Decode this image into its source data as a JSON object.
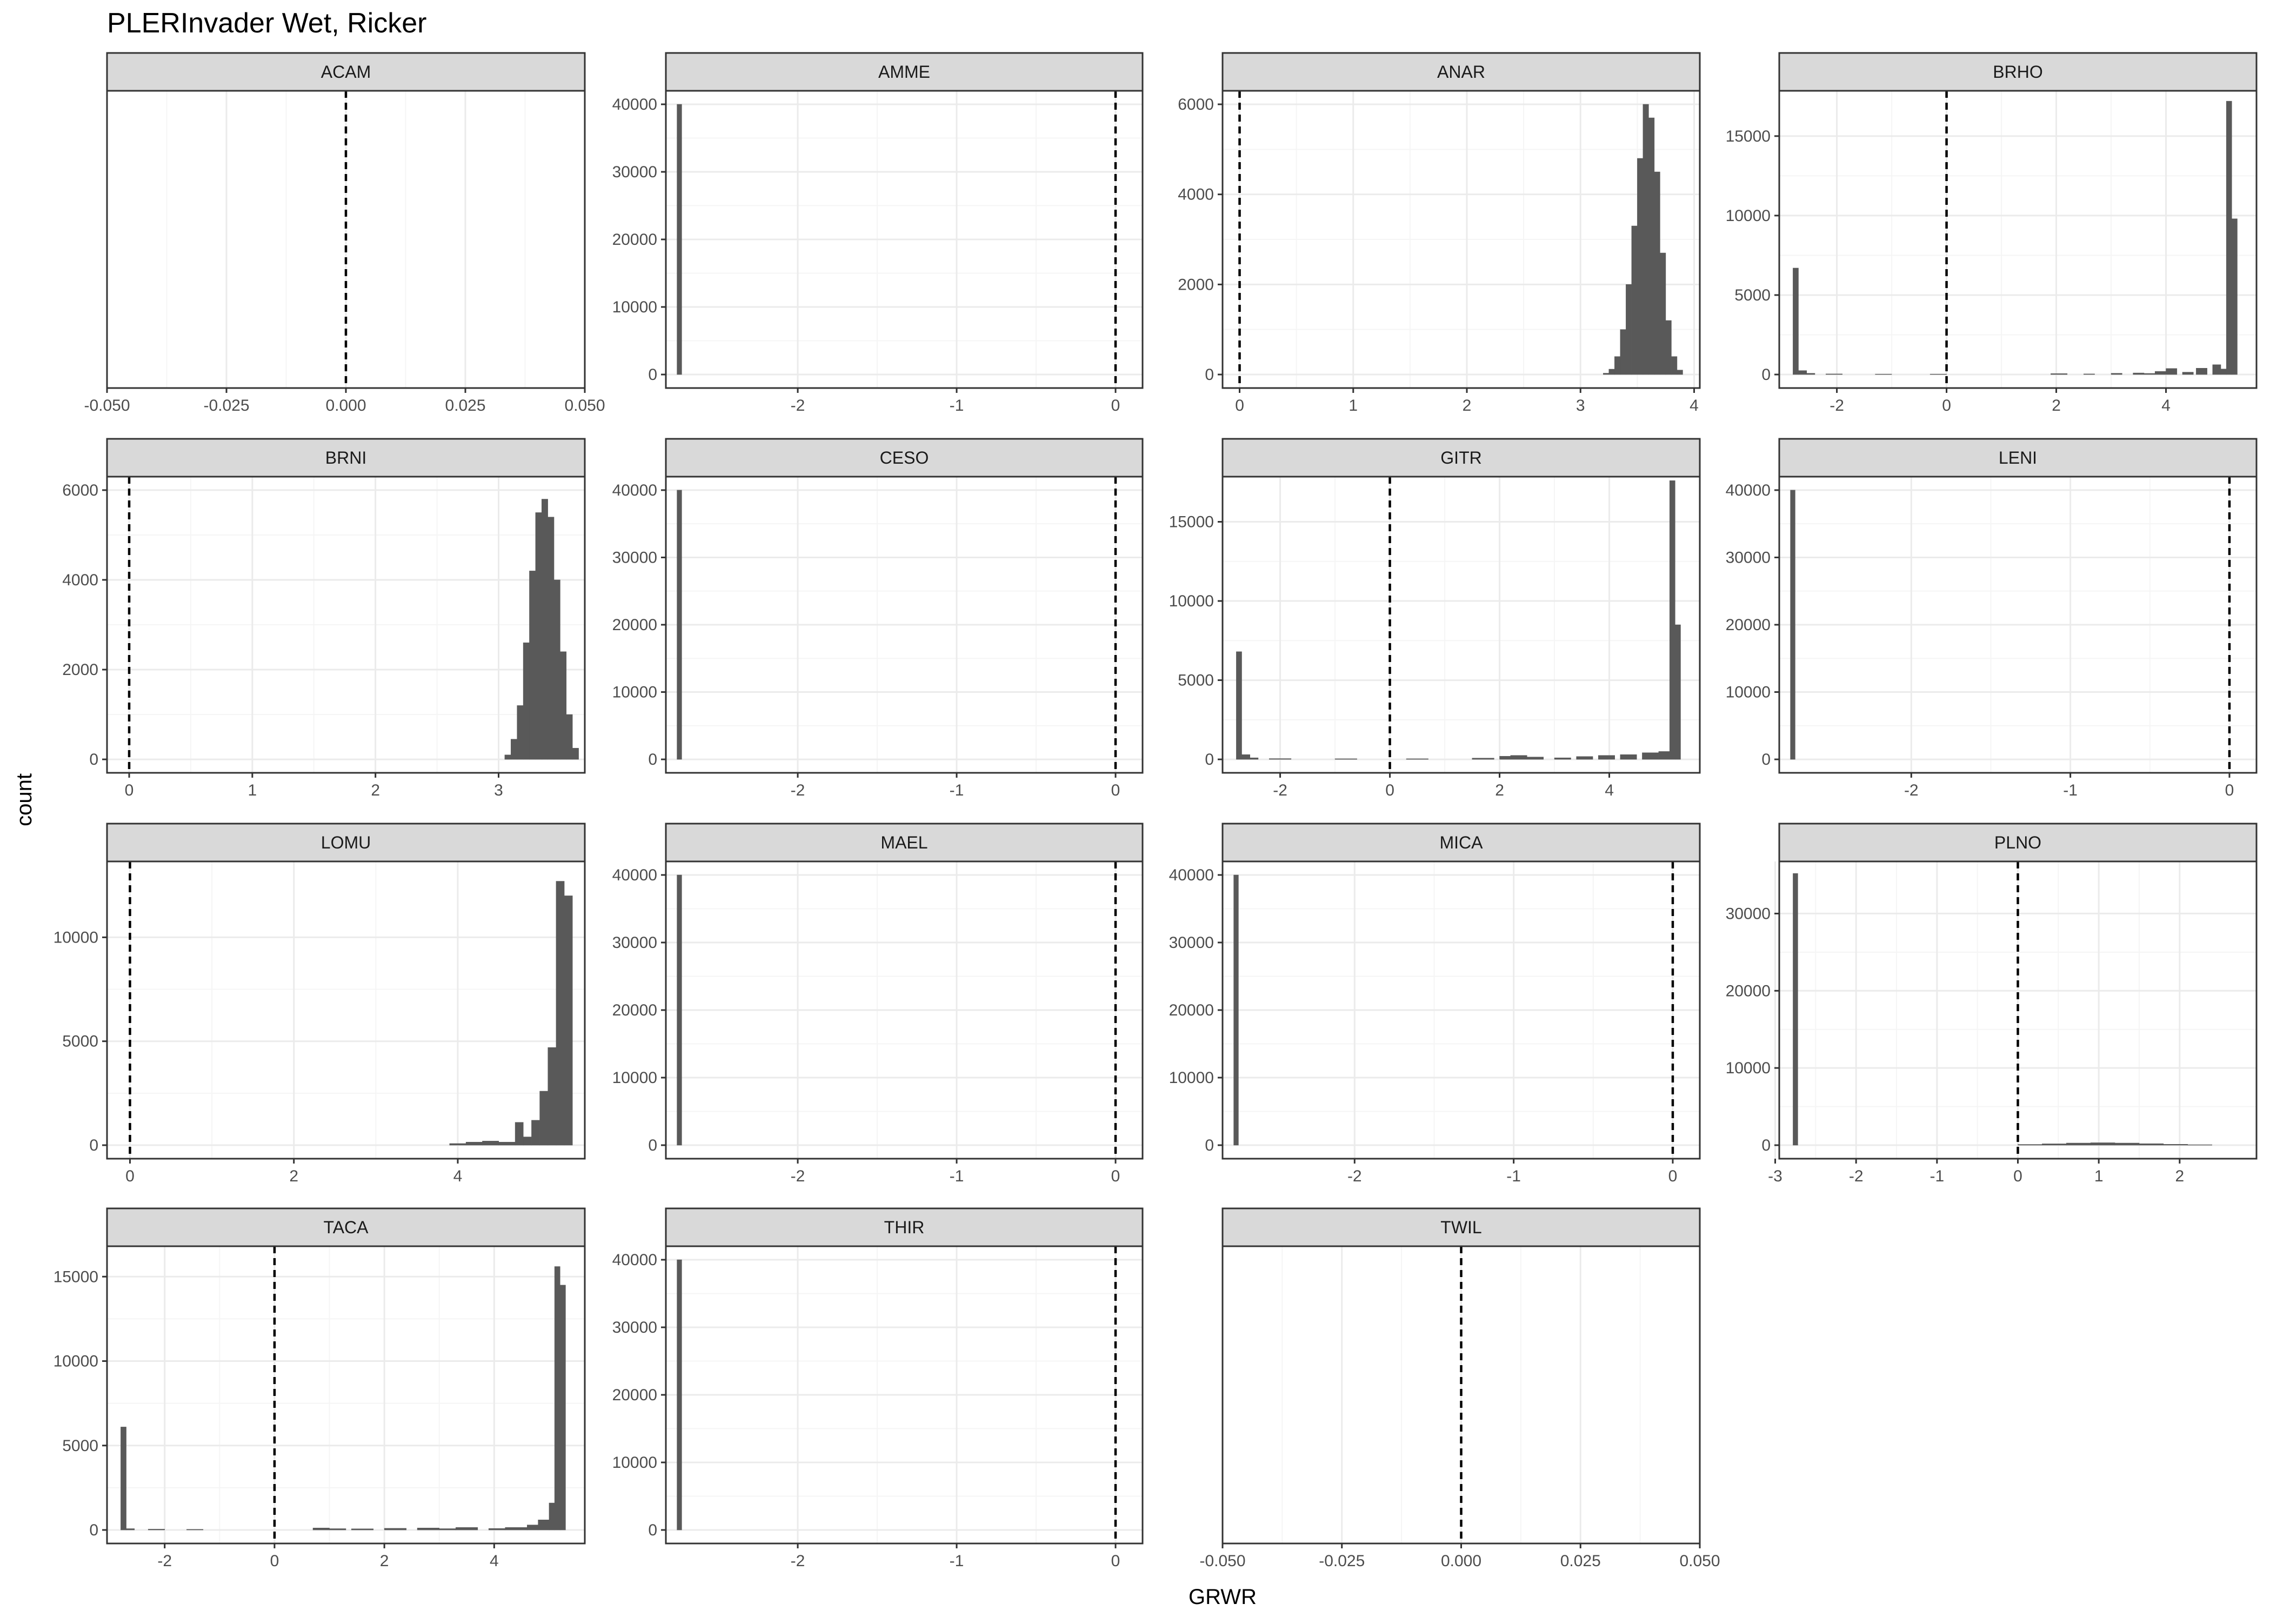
{
  "title": "PLERInvader Wet, Ricker",
  "xlabel": "GRWR",
  "ylabel": "count",
  "colors": {
    "bar": "#595959",
    "strip_fill": "#d9d9d9",
    "panel_border": "#333333",
    "grid_major": "#ebebeb",
    "grid_minor": "#f5f5f5",
    "vline": "#000000",
    "text": "#4d4d4d"
  },
  "chart_data": {
    "type": "bar",
    "subtype": "faceted-histogram",
    "vline_x": 0,
    "grid": true,
    "panels": [
      {
        "name": "ACAM",
        "empty": true,
        "xlim": [
          -0.05,
          0.05
        ],
        "xticks": [
          -0.05,
          -0.025,
          0,
          0.025,
          0.05
        ],
        "xtick_labels": [
          "-0.050",
          "-0.025",
          "0.000",
          "0.025",
          "0.050"
        ],
        "yticks": [],
        "ylim": [
          0,
          1
        ],
        "bars": []
      },
      {
        "name": "AMME",
        "xlim": [
          -2.83,
          0.17
        ],
        "xticks": [
          -2,
          -1,
          0
        ],
        "xtick_labels": [
          "-2",
          "-1",
          "0"
        ],
        "ylim": [
          -2000,
          42000
        ],
        "yticks": [
          0,
          10000,
          20000,
          30000,
          40000
        ],
        "ytick_labels": [
          "0",
          "10000",
          "20000",
          "30000",
          "40000"
        ],
        "bars": [
          [
            -2.76,
            -2.73,
            40000
          ]
        ]
      },
      {
        "name": "ANAR",
        "xlim": [
          -0.15,
          4.05
        ],
        "xticks": [
          0,
          1,
          2,
          3,
          4
        ],
        "xtick_labels": [
          "0",
          "1",
          "2",
          "3",
          "4"
        ],
        "ylim": [
          -300,
          6300
        ],
        "yticks": [
          0,
          2000,
          4000,
          6000
        ],
        "ytick_labels": [
          "0",
          "2000",
          "4000",
          "6000"
        ],
        "bars": [
          [
            3.2,
            3.25,
            30
          ],
          [
            3.25,
            3.3,
            120
          ],
          [
            3.3,
            3.35,
            400
          ],
          [
            3.35,
            3.4,
            1000
          ],
          [
            3.4,
            3.45,
            2000
          ],
          [
            3.45,
            3.5,
            3300
          ],
          [
            3.5,
            3.55,
            4800
          ],
          [
            3.55,
            3.6,
            6000
          ],
          [
            3.6,
            3.65,
            5700
          ],
          [
            3.65,
            3.7,
            4500
          ],
          [
            3.7,
            3.75,
            2700
          ],
          [
            3.75,
            3.8,
            1200
          ],
          [
            3.8,
            3.85,
            400
          ],
          [
            3.85,
            3.9,
            100
          ]
        ]
      },
      {
        "name": "BRHO",
        "xlim": [
          -3.05,
          5.65
        ],
        "xticks": [
          -2,
          0,
          2,
          4
        ],
        "xtick_labels": [
          "-2",
          "0",
          "2",
          "4"
        ],
        "ylim": [
          -850,
          17850
        ],
        "yticks": [
          0,
          5000,
          10000,
          15000
        ],
        "ytick_labels": [
          "0",
          "5000",
          "10000",
          "15000"
        ],
        "bars": [
          [
            -2.8,
            -2.7,
            6700
          ],
          [
            -2.7,
            -2.55,
            250
          ],
          [
            -2.55,
            -2.4,
            80
          ],
          [
            -2.2,
            -1.9,
            40
          ],
          [
            -1.3,
            -1.0,
            30
          ],
          [
            -0.3,
            0.0,
            30
          ],
          [
            1.9,
            2.2,
            60
          ],
          [
            2.5,
            2.7,
            40
          ],
          [
            3.0,
            3.2,
            80
          ],
          [
            3.4,
            3.6,
            100
          ],
          [
            3.6,
            3.8,
            70
          ],
          [
            3.8,
            4.0,
            200
          ],
          [
            4.0,
            4.2,
            380
          ],
          [
            4.3,
            4.5,
            150
          ],
          [
            4.55,
            4.75,
            400
          ],
          [
            4.85,
            5.0,
            620
          ],
          [
            5.0,
            5.1,
            350
          ],
          [
            5.1,
            5.2,
            17200
          ],
          [
            5.2,
            5.3,
            9800
          ]
        ]
      },
      {
        "name": "BRNI",
        "xlim": [
          -0.18,
          3.7
        ],
        "xticks": [
          0,
          1,
          2,
          3
        ],
        "xtick_labels": [
          "0",
          "1",
          "2",
          "3"
        ],
        "ylim": [
          -300,
          6300
        ],
        "yticks": [
          0,
          2000,
          4000,
          6000
        ],
        "ytick_labels": [
          "0",
          "2000",
          "4000",
          "6000"
        ],
        "bars": [
          [
            3.05,
            3.1,
            100
          ],
          [
            3.1,
            3.15,
            450
          ],
          [
            3.15,
            3.2,
            1200
          ],
          [
            3.2,
            3.25,
            2600
          ],
          [
            3.25,
            3.3,
            4200
          ],
          [
            3.3,
            3.35,
            5500
          ],
          [
            3.35,
            3.4,
            5800
          ],
          [
            3.4,
            3.45,
            5400
          ],
          [
            3.45,
            3.5,
            4000
          ],
          [
            3.5,
            3.55,
            2400
          ],
          [
            3.55,
            3.6,
            1000
          ],
          [
            3.6,
            3.65,
            250
          ]
        ]
      },
      {
        "name": "CESO",
        "xlim": [
          -2.83,
          0.17
        ],
        "xticks": [
          -2,
          -1,
          0
        ],
        "xtick_labels": [
          "-2",
          "-1",
          "0"
        ],
        "ylim": [
          -2000,
          42000
        ],
        "yticks": [
          0,
          10000,
          20000,
          30000,
          40000
        ],
        "ytick_labels": [
          "0",
          "10000",
          "20000",
          "30000",
          "40000"
        ],
        "bars": [
          [
            -2.76,
            -2.73,
            40000
          ]
        ]
      },
      {
        "name": "GITR",
        "xlim": [
          -3.05,
          5.65
        ],
        "xticks": [
          -2,
          0,
          2,
          4
        ],
        "xtick_labels": [
          "-2",
          "0",
          "2",
          "4"
        ],
        "ylim": [
          -850,
          17850
        ],
        "yticks": [
          0,
          5000,
          10000,
          15000
        ],
        "ytick_labels": [
          "0",
          "5000",
          "10000",
          "15000"
        ],
        "bars": [
          [
            -2.8,
            -2.7,
            6800
          ],
          [
            -2.7,
            -2.55,
            300
          ],
          [
            -2.55,
            -2.4,
            100
          ],
          [
            -2.2,
            -1.8,
            50
          ],
          [
            -1.0,
            -0.6,
            40
          ],
          [
            0.3,
            0.7,
            40
          ],
          [
            1.5,
            1.9,
            80
          ],
          [
            2.0,
            2.2,
            200
          ],
          [
            2.2,
            2.5,
            250
          ],
          [
            2.5,
            2.8,
            150
          ],
          [
            3.0,
            3.3,
            100
          ],
          [
            3.4,
            3.7,
            180
          ],
          [
            3.8,
            4.1,
            250
          ],
          [
            4.2,
            4.5,
            300
          ],
          [
            4.6,
            4.9,
            420
          ],
          [
            4.9,
            5.1,
            500
          ],
          [
            5.1,
            5.2,
            17600
          ],
          [
            5.2,
            5.3,
            8500
          ]
        ]
      },
      {
        "name": "LENI",
        "xlim": [
          -2.83,
          0.17
        ],
        "xticks": [
          -2,
          -1,
          0
        ],
        "xtick_labels": [
          "-2",
          "-1",
          "0"
        ],
        "ylim": [
          -2000,
          42000
        ],
        "yticks": [
          0,
          10000,
          20000,
          30000,
          40000
        ],
        "ytick_labels": [
          "0",
          "10000",
          "20000",
          "30000",
          "40000"
        ],
        "bars": [
          [
            -2.76,
            -2.73,
            40000
          ]
        ]
      },
      {
        "name": "LOMU",
        "xlim": [
          -0.28,
          5.55
        ],
        "xticks": [
          0,
          2,
          4
        ],
        "xtick_labels": [
          "0",
          "2",
          "4"
        ],
        "ylim": [
          -650,
          13650
        ],
        "yticks": [
          0,
          5000,
          10000
        ],
        "ytick_labels": [
          "0",
          "5000",
          "10000"
        ],
        "bars": [
          [
            3.9,
            4.1,
            80
          ],
          [
            4.1,
            4.3,
            150
          ],
          [
            4.3,
            4.5,
            200
          ],
          [
            4.5,
            4.7,
            150
          ],
          [
            4.7,
            4.8,
            1100
          ],
          [
            4.8,
            4.9,
            400
          ],
          [
            4.9,
            5.0,
            1200
          ],
          [
            5.0,
            5.1,
            2600
          ],
          [
            5.1,
            5.2,
            4700
          ],
          [
            5.2,
            5.3,
            12700
          ],
          [
            5.3,
            5.4,
            12000
          ]
        ]
      },
      {
        "name": "MAEL",
        "xlim": [
          -2.83,
          0.17
        ],
        "xticks": [
          -2,
          -1,
          0
        ],
        "xtick_labels": [
          "-2",
          "-1",
          "0"
        ],
        "ylim": [
          -2000,
          42000
        ],
        "yticks": [
          0,
          10000,
          20000,
          30000,
          40000
        ],
        "ytick_labels": [
          "0",
          "10000",
          "20000",
          "30000",
          "40000"
        ],
        "bars": [
          [
            -2.76,
            -2.73,
            40000
          ]
        ]
      },
      {
        "name": "MICA",
        "xlim": [
          -2.83,
          0.17
        ],
        "xticks": [
          -2,
          -1,
          0
        ],
        "xtick_labels": [
          "-2",
          "-1",
          "0"
        ],
        "ylim": [
          -2000,
          42000
        ],
        "yticks": [
          0,
          10000,
          20000,
          30000,
          40000
        ],
        "ytick_labels": [
          "0",
          "10000",
          "20000",
          "30000",
          "40000"
        ],
        "bars": [
          [
            -2.76,
            -2.73,
            40000
          ]
        ]
      },
      {
        "name": "PLNO",
        "xlim": [
          -2.95,
          2.95
        ],
        "xticks": [
          -3,
          -2,
          -1,
          0,
          1,
          2
        ],
        "xtick_labels": [
          "-3",
          "-2",
          "-1",
          "0",
          "1",
          "2"
        ],
        "ylim": [
          -1750,
          36750
        ],
        "yticks": [
          0,
          10000,
          20000,
          30000
        ],
        "ytick_labels": [
          "0",
          "10000",
          "20000",
          "30000"
        ],
        "bars": [
          [
            -2.78,
            -2.72,
            35200
          ],
          [
            0.0,
            0.3,
            100
          ],
          [
            0.3,
            0.6,
            180
          ],
          [
            0.6,
            0.9,
            280
          ],
          [
            0.9,
            1.2,
            320
          ],
          [
            1.2,
            1.5,
            280
          ],
          [
            1.5,
            1.8,
            200
          ],
          [
            1.8,
            2.1,
            120
          ],
          [
            2.1,
            2.4,
            60
          ]
        ]
      },
      {
        "name": "TACA",
        "xlim": [
          -3.05,
          5.65
        ],
        "xticks": [
          -2,
          0,
          2,
          4
        ],
        "xtick_labels": [
          "-2",
          "0",
          "2",
          "4"
        ],
        "ylim": [
          -800,
          16800
        ],
        "yticks": [
          0,
          5000,
          10000,
          15000
        ],
        "ytick_labels": [
          "0",
          "5000",
          "10000",
          "15000"
        ],
        "bars": [
          [
            -2.8,
            -2.7,
            6100
          ],
          [
            -2.7,
            -2.55,
            80
          ],
          [
            -2.3,
            -2.0,
            50
          ],
          [
            -1.6,
            -1.3,
            40
          ],
          [
            0.7,
            1.0,
            120
          ],
          [
            1.0,
            1.3,
            80
          ],
          [
            1.4,
            1.8,
            70
          ],
          [
            2.0,
            2.4,
            100
          ],
          [
            2.6,
            3.0,
            120
          ],
          [
            3.0,
            3.3,
            80
          ],
          [
            3.3,
            3.7,
            150
          ],
          [
            3.9,
            4.2,
            90
          ],
          [
            4.2,
            4.6,
            150
          ],
          [
            4.6,
            4.8,
            300
          ],
          [
            4.8,
            5.0,
            600
          ],
          [
            5.0,
            5.1,
            1600
          ],
          [
            5.1,
            5.2,
            15600
          ],
          [
            5.2,
            5.3,
            14500
          ]
        ]
      },
      {
        "name": "THIR",
        "xlim": [
          -2.83,
          0.17
        ],
        "xticks": [
          -2,
          -1,
          0
        ],
        "xtick_labels": [
          "-2",
          "-1",
          "0"
        ],
        "ylim": [
          -2000,
          42000
        ],
        "yticks": [
          0,
          10000,
          20000,
          30000,
          40000
        ],
        "ytick_labels": [
          "0",
          "10000",
          "20000",
          "30000",
          "40000"
        ],
        "bars": [
          [
            -2.76,
            -2.73,
            40000
          ]
        ]
      },
      {
        "name": "TWIL",
        "empty": true,
        "xlim": [
          -0.05,
          0.05
        ],
        "xticks": [
          -0.05,
          -0.025,
          0,
          0.025,
          0.05
        ],
        "xtick_labels": [
          "-0.050",
          "-0.025",
          "0.000",
          "0.025",
          "0.050"
        ],
        "yticks": [],
        "ylim": [
          0,
          1
        ],
        "bars": []
      }
    ]
  }
}
